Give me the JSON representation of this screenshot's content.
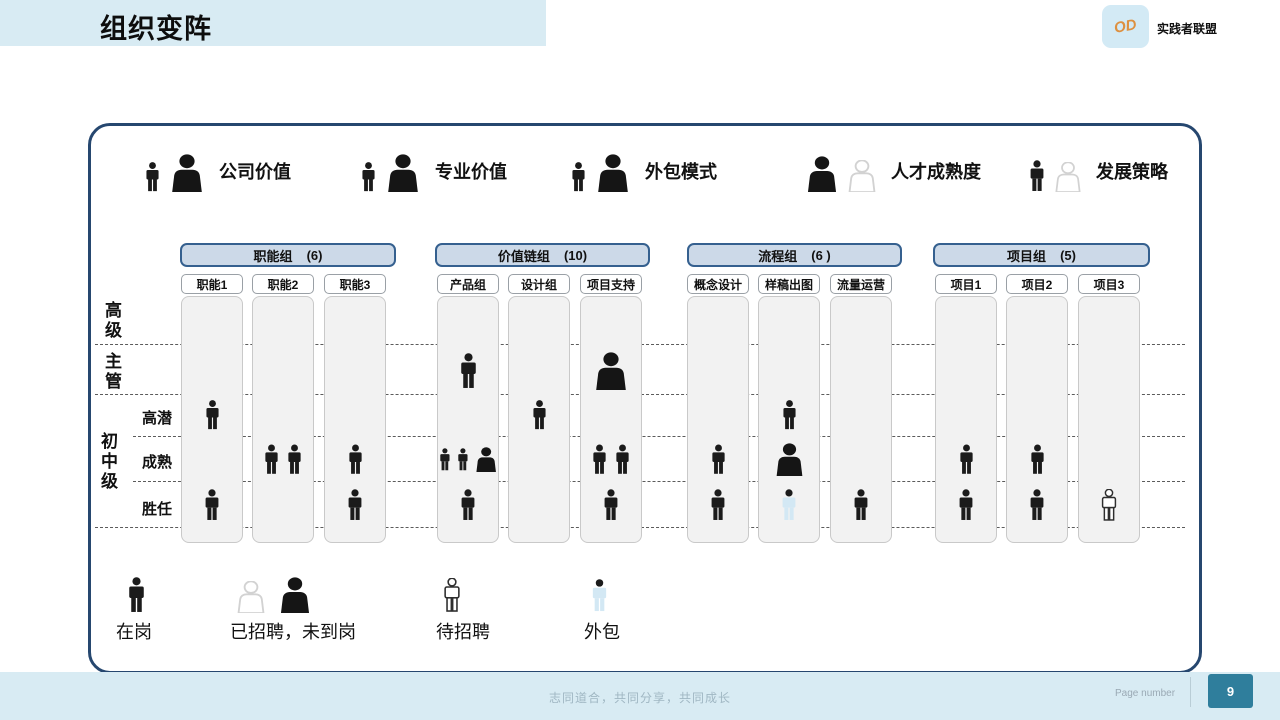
{
  "page": {
    "title": "组织变阵",
    "logo_text": "OD",
    "org_name": "实践者联盟"
  },
  "value_legend": [
    {
      "label": "公司价值",
      "icons": [
        "onboard",
        "recruited"
      ]
    },
    {
      "label": "专业价值",
      "icons": [
        "onboard",
        "recruited"
      ]
    },
    {
      "label": "外包模式",
      "icons": [
        "onboard",
        "recruited"
      ]
    },
    {
      "label": "人才成熟度",
      "icons": [
        "recruited",
        "ghost"
      ]
    },
    {
      "label": "发展策略",
      "icons": [
        "onboard",
        "ghost"
      ]
    }
  ],
  "groups": [
    {
      "label": "职能组",
      "count": "(6)"
    },
    {
      "label": "价值链组",
      "count": "(10)"
    },
    {
      "label": "流程组",
      "count": "(6 )"
    },
    {
      "label": "项目组",
      "count": "(5)"
    }
  ],
  "levels": {
    "senior": "高级",
    "supervisor": "主管",
    "junior_mid": "初中级",
    "sublevels": {
      "high_potential": "高潜",
      "mature": "成熟",
      "competent": "胜任"
    }
  },
  "matrix": {
    "row_keys": [
      "supervisor",
      "high_potential",
      "mature",
      "competent"
    ],
    "columns": [
      {
        "label": "职能1",
        "group": 0,
        "supervisor": [],
        "high_potential": [
          "onboard"
        ],
        "mature": [],
        "competent": [
          "onboard"
        ]
      },
      {
        "label": "职能2",
        "group": 0,
        "supervisor": [],
        "high_potential": [],
        "mature": [
          "onboard",
          "onboard"
        ],
        "competent": []
      },
      {
        "label": "职能3",
        "group": 0,
        "supervisor": [],
        "high_potential": [],
        "mature": [
          "onboard"
        ],
        "competent": [
          "onboard"
        ]
      },
      {
        "label": "产品组",
        "group": 1,
        "supervisor": [
          "onboard"
        ],
        "high_potential": [],
        "mature": [
          "onboard",
          "onboard",
          "recruited"
        ],
        "competent": [
          "onboard"
        ]
      },
      {
        "label": "设计组",
        "group": 1,
        "supervisor": [],
        "high_potential": [
          "onboard"
        ],
        "mature": [],
        "competent": []
      },
      {
        "label": "项目支持",
        "group": 1,
        "supervisor": [
          "recruited"
        ],
        "high_potential": [],
        "mature": [
          "onboard",
          "onboard"
        ],
        "competent": [
          "onboard"
        ]
      },
      {
        "label": "概念设计",
        "group": 2,
        "supervisor": [],
        "high_potential": [],
        "mature": [
          "onboard"
        ],
        "competent": [
          "onboard"
        ]
      },
      {
        "label": "样稿出图",
        "group": 2,
        "supervisor": [],
        "high_potential": [
          "onboard"
        ],
        "mature": [
          "recruited"
        ],
        "competent": [
          "outsource"
        ]
      },
      {
        "label": "流量运营",
        "group": 2,
        "supervisor": [],
        "high_potential": [],
        "mature": [],
        "competent": [
          "onboard"
        ]
      },
      {
        "label": "项目1",
        "group": 3,
        "supervisor": [],
        "high_potential": [],
        "mature": [
          "onboard"
        ],
        "competent": [
          "onboard"
        ]
      },
      {
        "label": "项目2",
        "group": 3,
        "supervisor": [],
        "high_potential": [],
        "mature": [
          "onboard"
        ],
        "competent": [
          "onboard"
        ]
      },
      {
        "label": "项目3",
        "group": 3,
        "supervisor": [],
        "high_potential": [],
        "mature": [],
        "competent": [
          "pending"
        ]
      }
    ]
  },
  "status_legend": [
    {
      "label": "在岗",
      "icons": [
        "onboard"
      ]
    },
    {
      "label": "已招聘，未到岗",
      "icons": [
        "ghost",
        "recruited"
      ]
    },
    {
      "label": "待招聘",
      "icons": [
        "pending"
      ]
    },
    {
      "label": "外包",
      "icons": [
        "outsource"
      ]
    }
  ],
  "footer": {
    "motto": "志同道合，共同分享，共同成长",
    "page_label": "Page number",
    "page_number": "9"
  },
  "colors": {
    "header_band": "#d8ebf3",
    "box_border": "#26476f",
    "group_fill": "#ccd9e8",
    "group_border": "#35608f",
    "column_fill": "#f2f2f2",
    "accent_teal": "#2f7e9c",
    "outsource_blue": "#d3e8f4",
    "logo_orange": "#dd9040",
    "person_black": "#1b1b1b"
  }
}
